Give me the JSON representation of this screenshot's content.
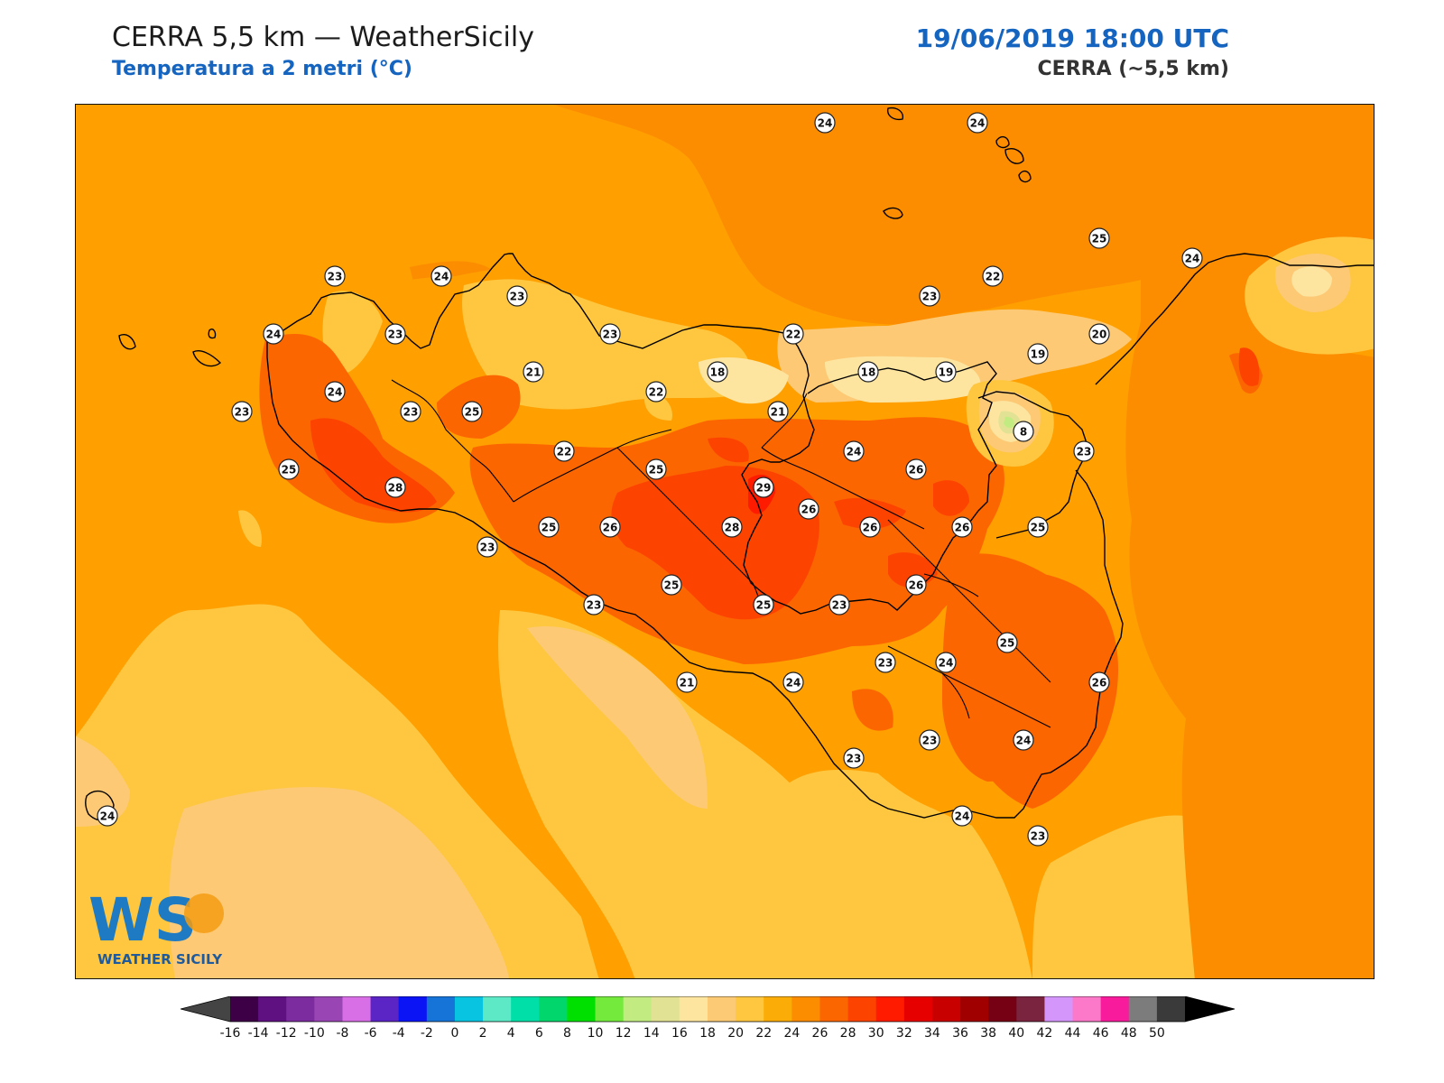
{
  "header": {
    "title": "CERRA 5,5 km — WeatherSicily",
    "subtitle": "Temperatura a 2 metri (°C)",
    "datetime": "19/06/2019 18:00 UTC",
    "model": "CERRA (~5,5 km)"
  },
  "logo": {
    "mark": "WS",
    "name": "WEATHER SICILY"
  },
  "colorbar": {
    "levels": [
      -16,
      -14,
      -12,
      -10,
      -8,
      -6,
      -4,
      -2,
      0,
      2,
      4,
      6,
      8,
      10,
      12,
      14,
      16,
      18,
      20,
      22,
      24,
      26,
      28,
      30,
      32,
      34,
      36,
      38,
      40,
      42,
      44,
      46,
      48,
      50
    ],
    "colors": [
      "#3d0046",
      "#5f1081",
      "#7c2c9e",
      "#9a45b4",
      "#d86fe6",
      "#5b24c4",
      "#0a14f5",
      "#1674d8",
      "#08c4e0",
      "#5ee9c6",
      "#00dfa8",
      "#00d66b",
      "#00e000",
      "#73ea3c",
      "#c2ec82",
      "#e2e294",
      "#fde5a0",
      "#fcc975",
      "#fec73f",
      "#fcac06",
      "#fc8c00",
      "#fc6600",
      "#fc4400",
      "#fe1b00",
      "#e60000",
      "#c80000",
      "#a00000",
      "#760014",
      "#7a2440",
      "#d596fc",
      "#fc78c8",
      "#f81c9c",
      "#7c7c7c",
      "#3a3a3a"
    ],
    "under_color": "#444444",
    "over_color": "#000000"
  },
  "stations": [
    {
      "v": "24"
    },
    {
      "v": "24"
    },
    {
      "v": "25"
    },
    {
      "v": "24"
    },
    {
      "v": "23"
    },
    {
      "v": "24"
    },
    {
      "v": "23"
    },
    {
      "v": "22"
    },
    {
      "v": "23"
    },
    {
      "v": "24"
    },
    {
      "v": "23"
    },
    {
      "v": "23"
    },
    {
      "v": "22"
    },
    {
      "v": "20"
    },
    {
      "v": "19"
    },
    {
      "v": "21"
    },
    {
      "v": "22"
    },
    {
      "v": "18"
    },
    {
      "v": "18"
    },
    {
      "v": "19"
    },
    {
      "v": "23"
    },
    {
      "v": "24"
    },
    {
      "v": "23"
    },
    {
      "v": "25"
    },
    {
      "v": "21"
    },
    {
      "v": "8"
    },
    {
      "v": "22"
    },
    {
      "v": "25"
    },
    {
      "v": "24"
    },
    {
      "v": "26"
    },
    {
      "v": "23"
    },
    {
      "v": "25"
    },
    {
      "v": "28"
    },
    {
      "v": "29"
    },
    {
      "v": "26"
    },
    {
      "v": "25"
    },
    {
      "v": "26"
    },
    {
      "v": "28"
    },
    {
      "v": "26"
    },
    {
      "v": "26"
    },
    {
      "v": "25"
    },
    {
      "v": "23"
    },
    {
      "v": "25"
    },
    {
      "v": "26"
    },
    {
      "v": "23"
    },
    {
      "v": "25"
    },
    {
      "v": "25"
    },
    {
      "v": "23"
    },
    {
      "v": "24"
    },
    {
      "v": "23"
    },
    {
      "v": "24"
    },
    {
      "v": "21"
    },
    {
      "v": "26"
    },
    {
      "v": "24"
    },
    {
      "v": "23"
    },
    {
      "v": "23"
    },
    {
      "v": "24"
    },
    {
      "v": "24"
    },
    {
      "v": "23"
    }
  ]
}
